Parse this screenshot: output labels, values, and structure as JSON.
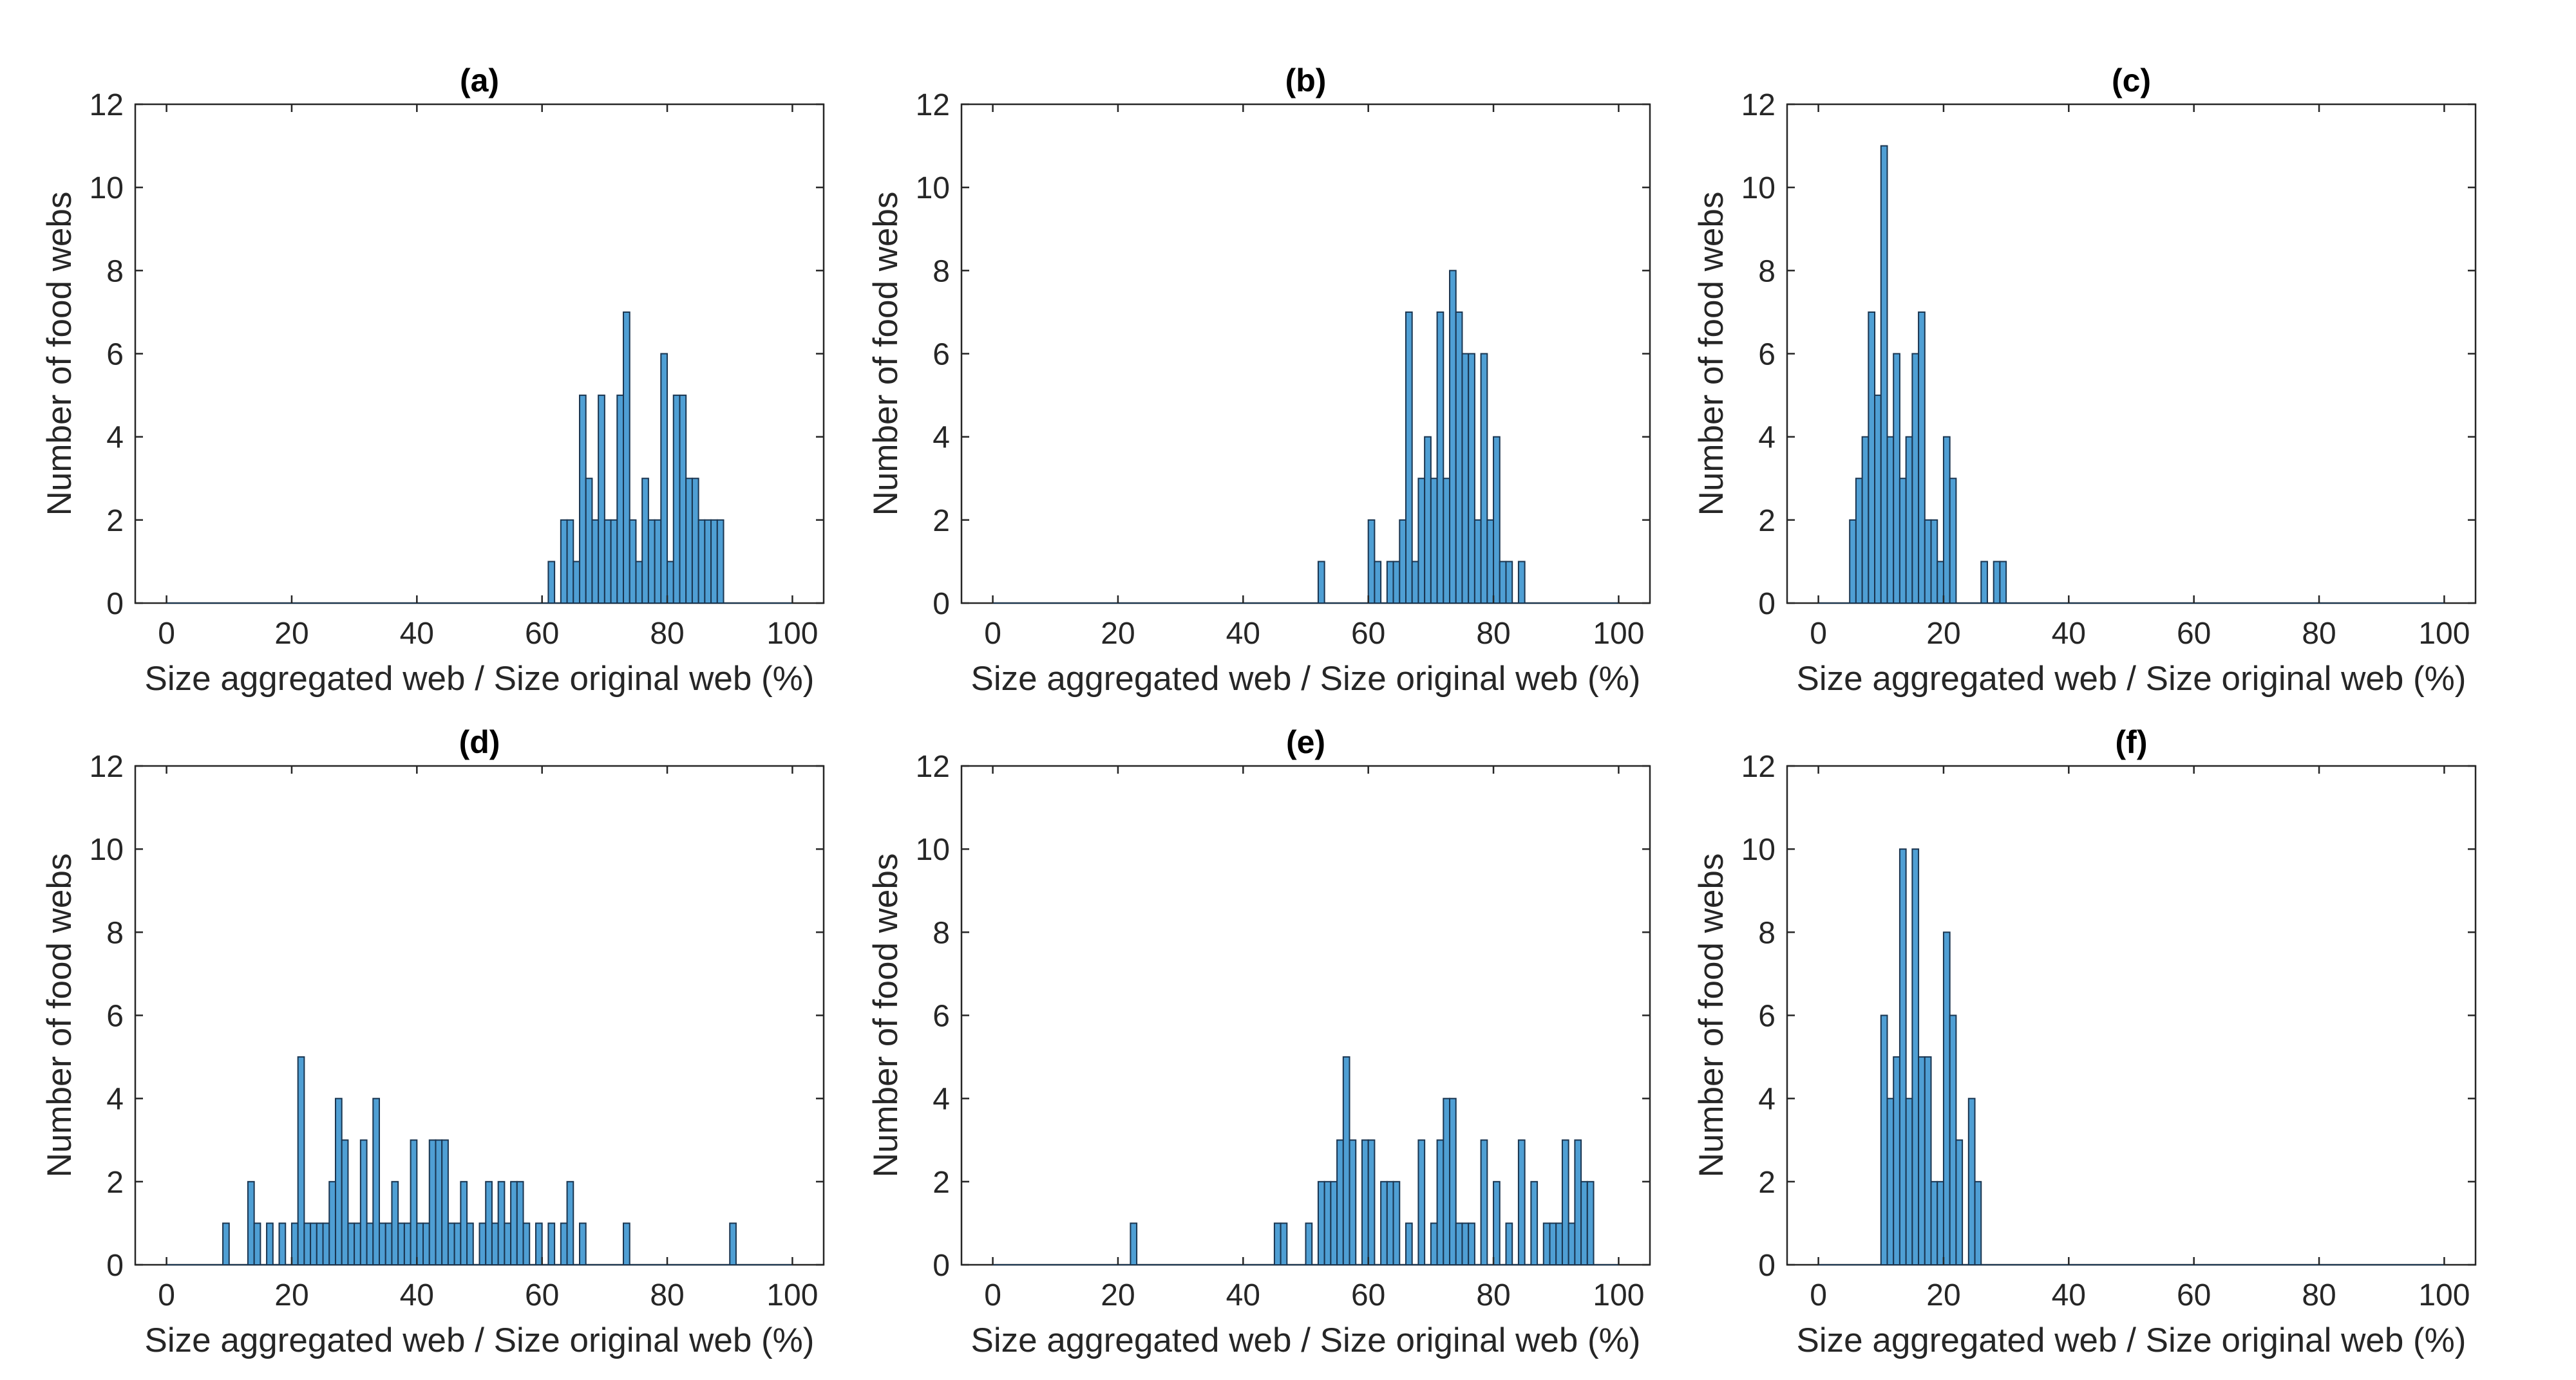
{
  "chart_data": [
    {
      "type": "bar",
      "title": "(a)",
      "xlabel": "Size aggregated web / Size original web (%)",
      "ylabel": "Number of food webs",
      "xlim": [
        -5,
        105
      ],
      "ylim": [
        0,
        12
      ],
      "xticks": [
        0,
        20,
        40,
        60,
        80,
        100
      ],
      "yticks": [
        0,
        2,
        4,
        6,
        8,
        10,
        12
      ],
      "bin_width": 1,
      "bar_color": "#4f9fd4",
      "bins": [
        [
          61,
          1
        ],
        [
          63,
          2
        ],
        [
          64,
          2
        ],
        [
          65,
          1
        ],
        [
          66,
          5
        ],
        [
          67,
          3
        ],
        [
          68,
          2
        ],
        [
          69,
          5
        ],
        [
          70,
          2
        ],
        [
          71,
          2
        ],
        [
          72,
          5
        ],
        [
          73,
          7
        ],
        [
          74,
          2
        ],
        [
          75,
          1
        ],
        [
          76,
          3
        ],
        [
          77,
          2
        ],
        [
          78,
          2
        ],
        [
          79,
          6
        ],
        [
          80,
          1
        ],
        [
          81,
          5
        ],
        [
          82,
          5
        ],
        [
          83,
          3
        ],
        [
          84,
          3
        ],
        [
          85,
          2
        ],
        [
          86,
          2
        ],
        [
          87,
          2
        ],
        [
          88,
          2
        ]
      ]
    },
    {
      "type": "bar",
      "title": "(b)",
      "xlabel": "Size aggregated web / Size original web (%)",
      "ylabel": "Number of food webs",
      "xlim": [
        -5,
        105
      ],
      "ylim": [
        0,
        12
      ],
      "xticks": [
        0,
        20,
        40,
        60,
        80,
        100
      ],
      "yticks": [
        0,
        2,
        4,
        6,
        8,
        10,
        12
      ],
      "bin_width": 1,
      "bar_color": "#4f9fd4",
      "bins": [
        [
          52,
          1
        ],
        [
          60,
          2
        ],
        [
          61,
          1
        ],
        [
          63,
          1
        ],
        [
          64,
          1
        ],
        [
          65,
          2
        ],
        [
          66,
          7
        ],
        [
          67,
          1
        ],
        [
          68,
          3
        ],
        [
          69,
          4
        ],
        [
          70,
          3
        ],
        [
          71,
          7
        ],
        [
          72,
          3
        ],
        [
          73,
          8
        ],
        [
          74,
          7
        ],
        [
          75,
          6
        ],
        [
          76,
          6
        ],
        [
          77,
          2
        ],
        [
          78,
          6
        ],
        [
          79,
          2
        ],
        [
          80,
          4
        ],
        [
          81,
          1
        ],
        [
          82,
          1
        ],
        [
          84,
          1
        ]
      ]
    },
    {
      "type": "bar",
      "title": "(c)",
      "xlabel": "Size aggregated web / Size original web (%)",
      "ylabel": "Number of food webs",
      "xlim": [
        -5,
        105
      ],
      "ylim": [
        0,
        12
      ],
      "xticks": [
        0,
        20,
        40,
        60,
        80,
        100
      ],
      "yticks": [
        0,
        2,
        4,
        6,
        8,
        10,
        12
      ],
      "bin_width": 1,
      "bar_color": "#4f9fd4",
      "bins": [
        [
          5,
          2
        ],
        [
          6,
          3
        ],
        [
          7,
          4
        ],
        [
          8,
          7
        ],
        [
          9,
          5
        ],
        [
          10,
          11
        ],
        [
          11,
          4
        ],
        [
          12,
          6
        ],
        [
          13,
          3
        ],
        [
          14,
          4
        ],
        [
          15,
          6
        ],
        [
          16,
          7
        ],
        [
          17,
          2
        ],
        [
          18,
          2
        ],
        [
          19,
          1
        ],
        [
          20,
          4
        ],
        [
          21,
          3
        ],
        [
          26,
          1
        ],
        [
          28,
          1
        ],
        [
          29,
          1
        ]
      ]
    },
    {
      "type": "bar",
      "title": "(d)",
      "xlabel": "Size aggregated web / Size original web (%)",
      "ylabel": "Number of food webs",
      "xlim": [
        -5,
        105
      ],
      "ylim": [
        0,
        12
      ],
      "xticks": [
        0,
        20,
        40,
        60,
        80,
        100
      ],
      "yticks": [
        0,
        2,
        4,
        6,
        8,
        10,
        12
      ],
      "bin_width": 1,
      "bar_color": "#4f9fd4",
      "bins": [
        [
          9,
          1
        ],
        [
          13,
          2
        ],
        [
          14,
          1
        ],
        [
          16,
          1
        ],
        [
          18,
          1
        ],
        [
          20,
          1
        ],
        [
          21,
          5
        ],
        [
          22,
          1
        ],
        [
          23,
          1
        ],
        [
          24,
          1
        ],
        [
          25,
          1
        ],
        [
          26,
          2
        ],
        [
          27,
          4
        ],
        [
          28,
          3
        ],
        [
          29,
          1
        ],
        [
          30,
          1
        ],
        [
          31,
          3
        ],
        [
          32,
          1
        ],
        [
          33,
          4
        ],
        [
          34,
          1
        ],
        [
          35,
          1
        ],
        [
          36,
          2
        ],
        [
          37,
          1
        ],
        [
          38,
          1
        ],
        [
          39,
          3
        ],
        [
          40,
          1
        ],
        [
          41,
          1
        ],
        [
          42,
          3
        ],
        [
          43,
          3
        ],
        [
          44,
          3
        ],
        [
          45,
          1
        ],
        [
          46,
          1
        ],
        [
          47,
          2
        ],
        [
          48,
          1
        ],
        [
          50,
          1
        ],
        [
          51,
          2
        ],
        [
          52,
          1
        ],
        [
          53,
          2
        ],
        [
          54,
          1
        ],
        [
          55,
          2
        ],
        [
          56,
          2
        ],
        [
          57,
          1
        ],
        [
          59,
          1
        ],
        [
          61,
          1
        ],
        [
          63,
          1
        ],
        [
          64,
          2
        ],
        [
          66,
          1
        ],
        [
          73,
          1
        ],
        [
          90,
          1
        ]
      ]
    },
    {
      "type": "bar",
      "title": "(e)",
      "xlabel": "Size aggregated web / Size original web (%)",
      "ylabel": "Number of food webs",
      "xlim": [
        -5,
        105
      ],
      "ylim": [
        0,
        12
      ],
      "xticks": [
        0,
        20,
        40,
        60,
        80,
        100
      ],
      "yticks": [
        0,
        2,
        4,
        6,
        8,
        10,
        12
      ],
      "bin_width": 1,
      "bar_color": "#4f9fd4",
      "bins": [
        [
          22,
          1
        ],
        [
          45,
          1
        ],
        [
          46,
          1
        ],
        [
          50,
          1
        ],
        [
          52,
          2
        ],
        [
          53,
          2
        ],
        [
          54,
          2
        ],
        [
          55,
          3
        ],
        [
          56,
          5
        ],
        [
          57,
          3
        ],
        [
          59,
          3
        ],
        [
          60,
          3
        ],
        [
          62,
          2
        ],
        [
          63,
          2
        ],
        [
          64,
          2
        ],
        [
          66,
          1
        ],
        [
          68,
          3
        ],
        [
          70,
          1
        ],
        [
          71,
          3
        ],
        [
          72,
          4
        ],
        [
          73,
          4
        ],
        [
          74,
          1
        ],
        [
          75,
          1
        ],
        [
          76,
          1
        ],
        [
          78,
          3
        ],
        [
          80,
          2
        ],
        [
          82,
          1
        ],
        [
          84,
          3
        ],
        [
          86,
          2
        ],
        [
          88,
          1
        ],
        [
          89,
          1
        ],
        [
          90,
          1
        ],
        [
          91,
          3
        ],
        [
          92,
          1
        ],
        [
          93,
          3
        ],
        [
          94,
          2
        ],
        [
          95,
          2
        ]
      ]
    },
    {
      "type": "bar",
      "title": "(f)",
      "xlabel": "Size aggregated web / Size original web (%)",
      "ylabel": "Number of food webs",
      "xlim": [
        -5,
        105
      ],
      "ylim": [
        0,
        12
      ],
      "xticks": [
        0,
        20,
        40,
        60,
        80,
        100
      ],
      "yticks": [
        0,
        2,
        4,
        6,
        8,
        10,
        12
      ],
      "bin_width": 1,
      "bar_color": "#4f9fd4",
      "bins": [
        [
          10,
          6
        ],
        [
          11,
          4
        ],
        [
          12,
          5
        ],
        [
          13,
          10
        ],
        [
          14,
          4
        ],
        [
          15,
          10
        ],
        [
          16,
          5
        ],
        [
          17,
          5
        ],
        [
          18,
          2
        ],
        [
          19,
          2
        ],
        [
          20,
          8
        ],
        [
          21,
          6
        ],
        [
          22,
          3
        ],
        [
          24,
          4
        ],
        [
          25,
          2
        ]
      ]
    }
  ]
}
